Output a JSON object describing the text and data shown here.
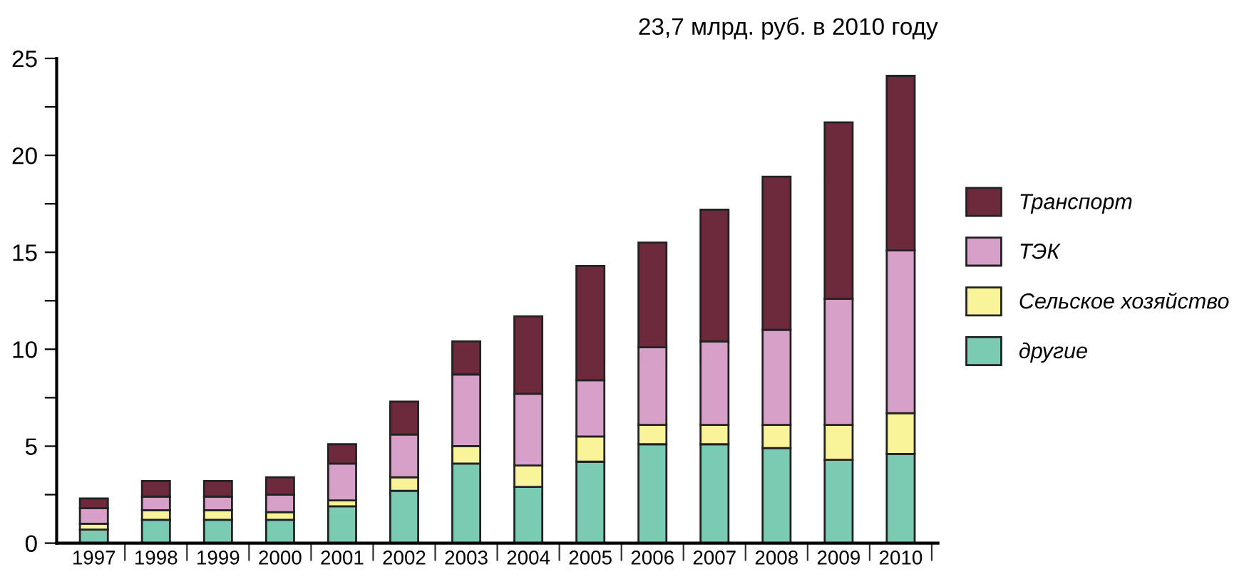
{
  "chart_data": {
    "type": "bar",
    "stacked": true,
    "title": "23,7 млрд. руб. в 2010 году",
    "categories": [
      "1997",
      "1998",
      "1999",
      "2000",
      "2001",
      "2002",
      "2003",
      "2004",
      "2005",
      "2006",
      "2007",
      "2008",
      "2009",
      "2010"
    ],
    "series": [
      {
        "name": "другие",
        "color": "#7bcab2",
        "values": [
          0.7,
          1.2,
          1.2,
          1.2,
          1.9,
          2.7,
          4.1,
          2.9,
          4.2,
          5.1,
          5.1,
          4.9,
          4.3,
          4.6
        ]
      },
      {
        "name": "Сельское хозяйство",
        "color": "#f9f49a",
        "values": [
          0.3,
          0.5,
          0.5,
          0.4,
          0.3,
          0.7,
          0.9,
          1.1,
          1.3,
          1.0,
          1.0,
          1.2,
          1.8,
          2.1
        ]
      },
      {
        "name": "ТЭК",
        "color": "#d6a0c8",
        "values": [
          0.8,
          0.7,
          0.7,
          0.9,
          1.9,
          2.2,
          3.7,
          3.7,
          2.9,
          4.0,
          4.3,
          4.9,
          6.5,
          8.4
        ]
      },
      {
        "name": "Транспорт",
        "color": "#6d2a3c",
        "values": [
          0.5,
          0.8,
          0.8,
          0.9,
          1.0,
          1.7,
          1.7,
          4.0,
          5.9,
          5.4,
          6.8,
          7.9,
          9.1,
          9.0
        ]
      }
    ],
    "ylim": [
      0,
      25
    ],
    "yticks": [
      0,
      {
        "value": 2.5,
        "label": null
      },
      5,
      {
        "value": 7.5,
        "label": null
      },
      10,
      {
        "value": 12.5,
        "label": null
      },
      15,
      {
        "value": 17.5,
        "label": null
      },
      20,
      {
        "value": 22.5,
        "label": null
      },
      25
    ],
    "grid": false,
    "legend": "right"
  }
}
